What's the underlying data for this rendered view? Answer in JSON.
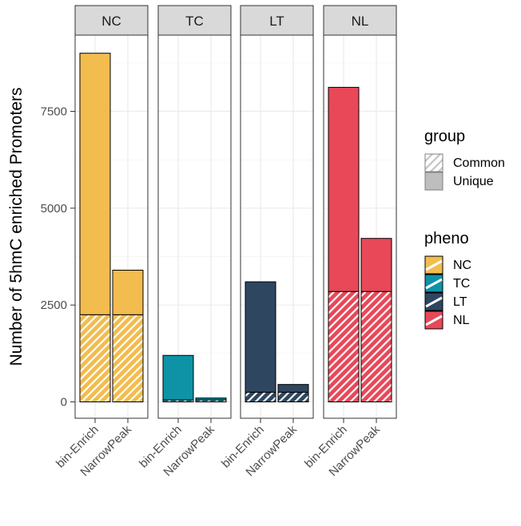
{
  "chart_data": {
    "type": "bar",
    "stacked": true,
    "ylabel": "Number of 5hmC enriched Promoters",
    "xlabel": "",
    "ylim": [
      0,
      9600
    ],
    "yticks": [
      0,
      2500,
      5000,
      7500
    ],
    "categories": [
      "bin-Enrich",
      "NarrowPeak"
    ],
    "panels": [
      {
        "name": "NC",
        "color": "#F2BC4E",
        "bars": [
          {
            "category": "bin-Enrich",
            "common": 2250,
            "unique": 6750
          },
          {
            "category": "NarrowPeak",
            "common": 2250,
            "unique": 1150
          }
        ]
      },
      {
        "name": "TC",
        "color": "#0E93A6",
        "bars": [
          {
            "category": "bin-Enrich",
            "common": 50,
            "unique": 1150
          },
          {
            "category": "NarrowPeak",
            "common": 50,
            "unique": 50
          }
        ]
      },
      {
        "name": "LT",
        "color": "#2E4660",
        "bars": [
          {
            "category": "bin-Enrich",
            "common": 250,
            "unique": 2850
          },
          {
            "category": "NarrowPeak",
            "common": 250,
            "unique": 200
          }
        ]
      },
      {
        "name": "NL",
        "color": "#E84858",
        "bars": [
          {
            "category": "bin-Enrich",
            "common": 2850,
            "unique": 5270
          },
          {
            "category": "NarrowPeak",
            "common": 2850,
            "unique": 1370
          }
        ]
      }
    ],
    "legend": {
      "group": {
        "title": "group",
        "items": [
          "Common",
          "Unique"
        ]
      },
      "pheno": {
        "title": "pheno",
        "items": [
          "NC",
          "TC",
          "LT",
          "NL"
        ]
      }
    },
    "grid": true,
    "legend_position": "right"
  }
}
